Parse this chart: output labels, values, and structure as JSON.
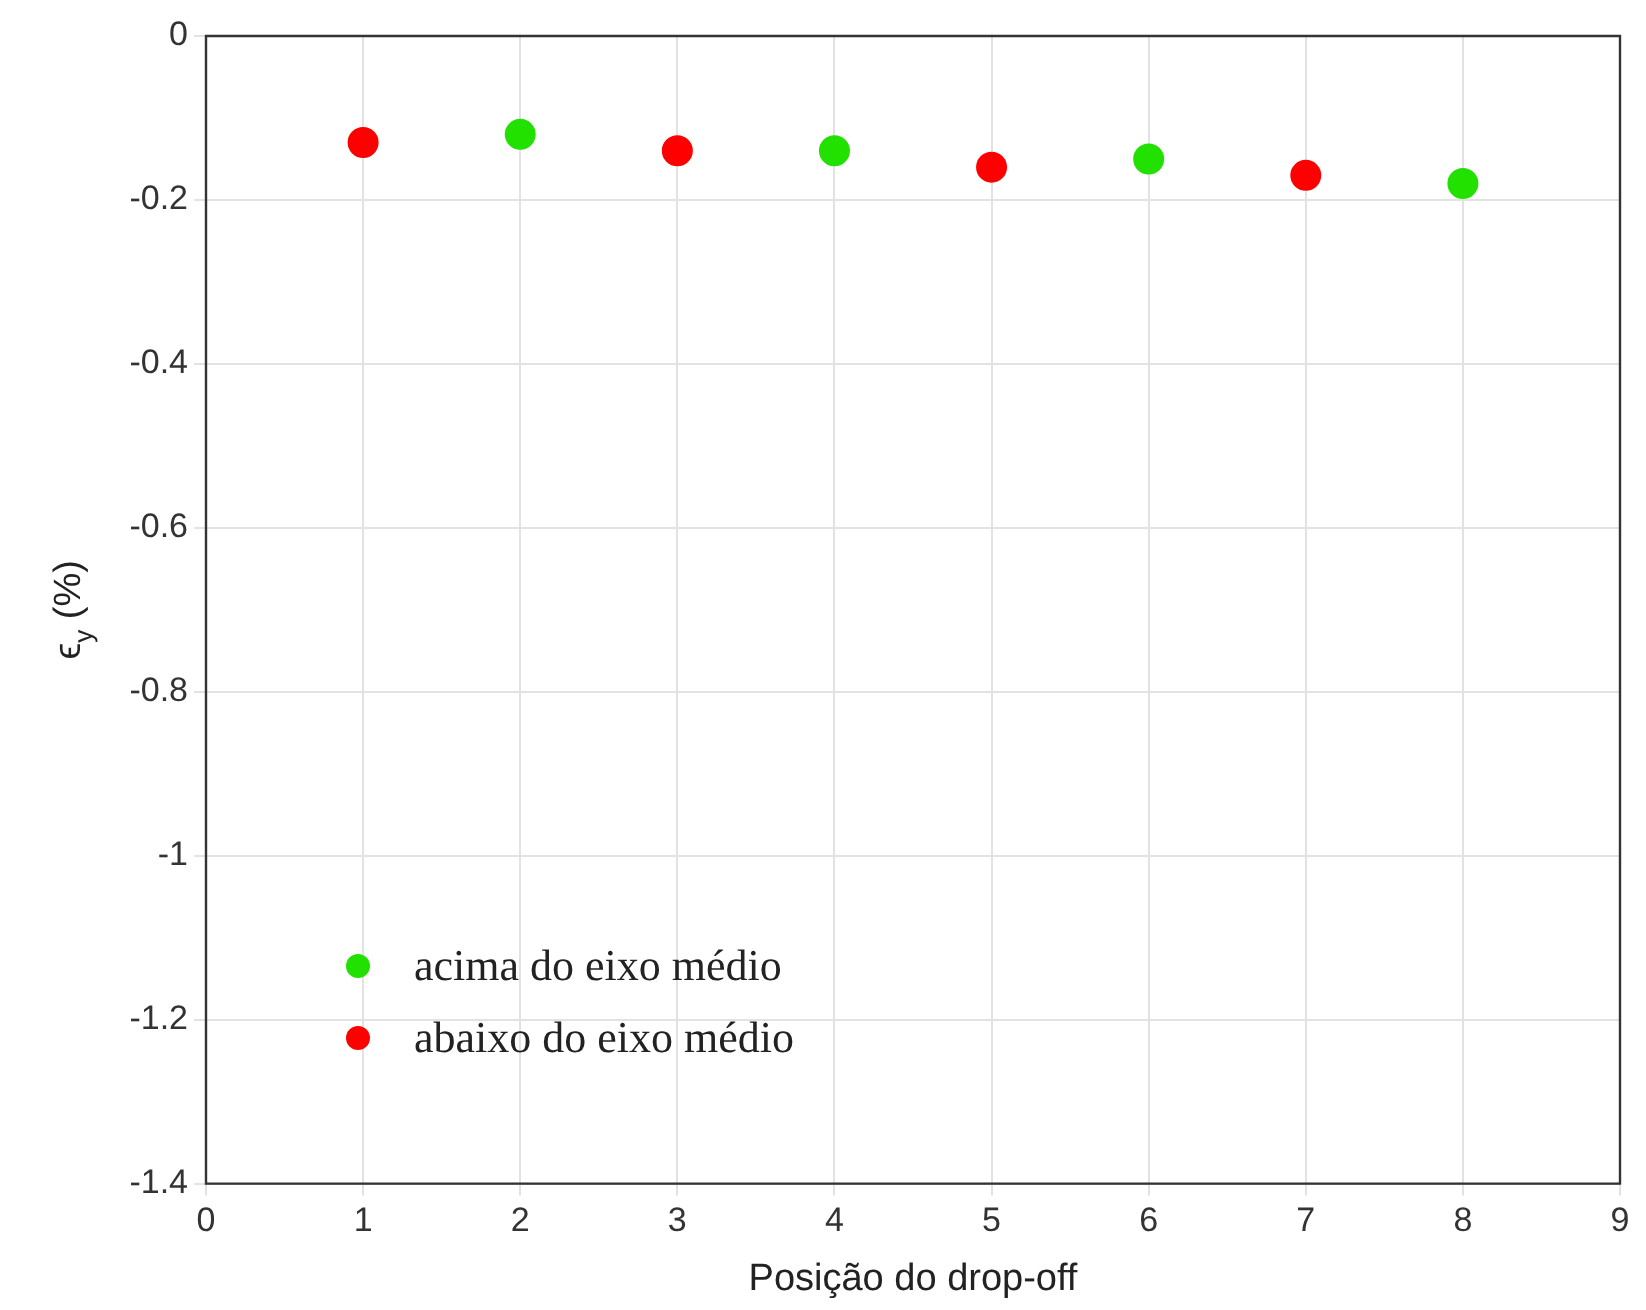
{
  "chart_data": {
    "type": "scatter",
    "xlabel": "Posição do drop-off",
    "ylabel": "ϵ$_{y}$ (%)",
    "xlim": [
      0,
      9
    ],
    "xticks": [
      0,
      1,
      2,
      3,
      4,
      5,
      6,
      7,
      8,
      9
    ],
    "ylim": [
      -1.4,
      0
    ],
    "yticks": [
      -1.4,
      -1.2,
      -1,
      -0.8,
      -0.6,
      -0.4,
      -0.2,
      0
    ],
    "grid": true,
    "legend": "bottom left",
    "marker": "circle",
    "series": [
      {
        "name": "acima do eixo médio",
        "color": "#22e000",
        "x": [
          2,
          4,
          6,
          8
        ],
        "values": [
          -0.12,
          -0.14,
          -0.15,
          -0.18
        ]
      },
      {
        "name": "abaixo do eixo médio",
        "color": "#ff0000",
        "x": [
          1,
          3,
          5,
          7
        ],
        "values": [
          -0.13,
          -0.14,
          -0.16,
          -0.17
        ]
      }
    ]
  }
}
